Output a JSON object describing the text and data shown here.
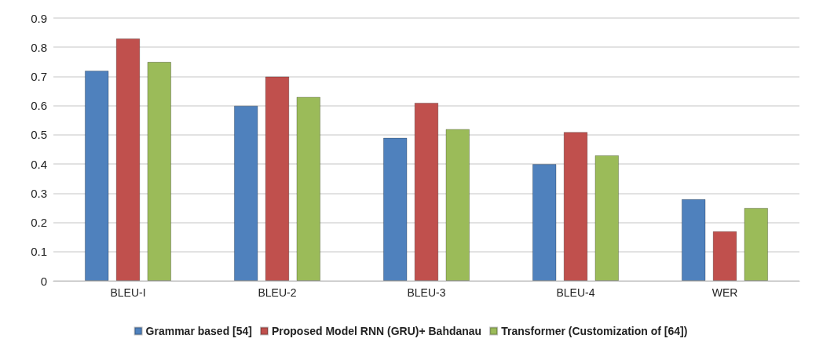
{
  "chart_data": {
    "type": "bar",
    "categories": [
      "BLEU-I",
      "BLEU-2",
      "BLEU-3",
      "BLEU-4",
      "WER"
    ],
    "series": [
      {
        "name": "Grammar based [54]",
        "color": "#4f81bd",
        "values": [
          0.72,
          0.6,
          0.49,
          0.4,
          0.28
        ]
      },
      {
        "name": "Proposed Model RNN (GRU)+ Bahdanau",
        "color": "#c0504d",
        "values": [
          0.83,
          0.7,
          0.61,
          0.51,
          0.17
        ]
      },
      {
        "name": "Transformer (Customization of [64])",
        "color": "#9bbb59",
        "values": [
          0.75,
          0.63,
          0.52,
          0.43,
          0.25
        ]
      }
    ],
    "ylim": [
      0,
      0.9
    ],
    "yticks": [
      0,
      0.1,
      0.2,
      0.3,
      0.4,
      0.5,
      0.6,
      0.7,
      0.8,
      0.9
    ],
    "grid": "y",
    "legend": "bottom"
  }
}
